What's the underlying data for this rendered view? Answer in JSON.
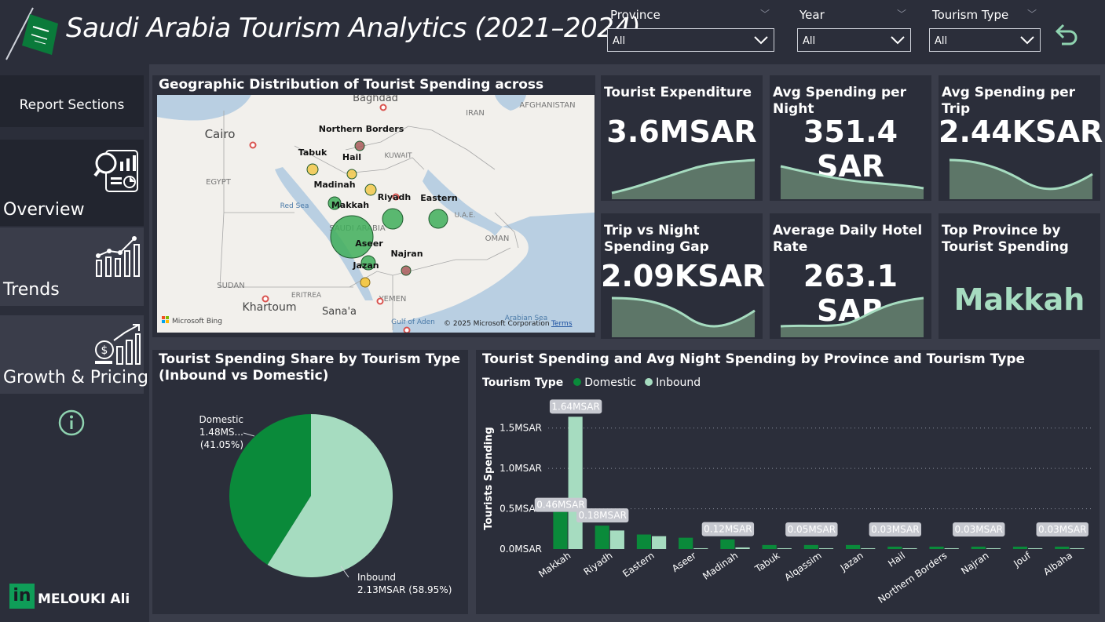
{
  "header": {
    "title": "Saudi Arabia Tourism Analytics (2021–2024)",
    "filters": [
      {
        "label": "Province",
        "value": "All"
      },
      {
        "label": "Year",
        "value": "All"
      },
      {
        "label": "Tourism Type",
        "value": "All"
      }
    ]
  },
  "sidebar": {
    "heading": "Report Sections",
    "items": [
      {
        "label": "Overview",
        "icon": "magnifier-chart-icon",
        "active": true
      },
      {
        "label": "Trends",
        "icon": "trend-chart-icon",
        "active": false
      },
      {
        "label": "Growth & Pricing",
        "icon": "money-growth-icon",
        "active": false
      }
    ],
    "author": {
      "badge": "in",
      "name": "MELOUKI Ali"
    }
  },
  "map": {
    "title": "Geographic Distribution of Tourist Spending across Provinces",
    "bing": "Microsoft Bing",
    "copyright": "© 2025 Microsoft Corporation",
    "terms": "Terms",
    "place_labels": [
      "Baghdad",
      "AFGHANISTAN",
      "IRAN",
      "KUWAIT",
      "Cairo",
      "EGYPT",
      "Red Sea",
      "SAUDI ARABIA",
      "U.A.E.",
      "OMAN",
      "SUDAN",
      "ERITREA",
      "Khartoum",
      "YEMEN",
      "Sana'a",
      "Arabian Sea",
      "Gulf of Aden"
    ],
    "provinces": [
      {
        "name": "Northern Borders",
        "color": "#a85a5a"
      },
      {
        "name": "Tabuk",
        "color": "#f2c84b"
      },
      {
        "name": "Hail",
        "color": "#f2c84b"
      },
      {
        "name": "Madinah",
        "color": "#f2c84b"
      },
      {
        "name": "Riyadh",
        "color": "#3fae5a"
      },
      {
        "name": "Makkah",
        "color": "#3fae5a"
      },
      {
        "name": "Eastern",
        "color": "#3fae5a"
      },
      {
        "name": "Aseer",
        "color": "#3fae5a"
      },
      {
        "name": "Najran",
        "color": "#a85a5a"
      },
      {
        "name": "Jazan",
        "color": "#3fae5a"
      }
    ]
  },
  "kpis": [
    {
      "title": "Tourist Expenditure",
      "value": "3.6MSAR"
    },
    {
      "title": "Avg Spending per Night",
      "value": "351.4 SAR"
    },
    {
      "title": "Avg Spending per Trip",
      "value": "2.44KSAR"
    },
    {
      "title": "Trip vs Night Spending Gap",
      "value": "2.09KSAR"
    },
    {
      "title": "Average Daily Hotel Rate",
      "value": "263.1 SAR"
    },
    {
      "title": "Top Province by Tourist Spending",
      "value": "Makkah"
    }
  ],
  "pie": {
    "title": "Tourist Spending Share by Tourism Type (Inbound vs Domestic)",
    "domestic_name": "Domestic",
    "domestic_value": "1.48MS... (41.05%)",
    "inbound_name": "Inbound",
    "inbound_value": "2.13MSAR (58.95%)"
  },
  "bar": {
    "title": "Tourist Spending and Avg Night Spending by Province and Tourism Type",
    "legend_title": "Tourism Type",
    "ylabel": "Tourists Spending"
  },
  "colors": {
    "domestic": "#0a8a3a",
    "inbound": "#a6dcc0",
    "accent": "#8fd3b0"
  },
  "chart_data": [
    {
      "type": "pie",
      "title": "Tourist Spending Share by Tourism Type (Inbound vs Domestic)",
      "slices": [
        {
          "name": "Domestic",
          "value": 1.48,
          "percent": 41.05
        },
        {
          "name": "Inbound",
          "value": 2.13,
          "percent": 58.95
        }
      ]
    },
    {
      "type": "bar",
      "title": "Tourist Spending and Avg Night Spending by Province and Tourism Type",
      "xlabel": "",
      "ylabel": "Tourists Spending",
      "ylim": [
        0,
        1.75
      ],
      "yticks": [
        "0.0MSAR",
        "0.5MSAR",
        "1.0MSAR",
        "1.5MSAR"
      ],
      "categories": [
        "Makkah",
        "Riyadh",
        "Eastern",
        "Aseer",
        "Madinah",
        "Tabuk",
        "Alqassim",
        "Jazan",
        "Hail",
        "Northern Borders",
        "Najran",
        "Jouf",
        "Albaha"
      ],
      "series": [
        {
          "name": "Domestic",
          "values": [
            0.46,
            0.29,
            0.18,
            0.14,
            0.12,
            0.05,
            0.05,
            0.05,
            0.03,
            0.03,
            0.03,
            0.03,
            0.03
          ]
        },
        {
          "name": "Inbound",
          "values": [
            1.64,
            0.23,
            0.16,
            0.01,
            0.02,
            0.01,
            0.01,
            0.01,
            0.01,
            0.01,
            0.01,
            0.01,
            0.01
          ]
        }
      ],
      "data_labels": [
        "1.64MSAR",
        "0.46MSAR",
        "0.18MSAR",
        "0.12MSAR",
        "0.05MSAR",
        "0.03MSAR",
        "0.03MSAR",
        "0.03MSAR"
      ],
      "legend": "top-left",
      "grid": true
    }
  ]
}
